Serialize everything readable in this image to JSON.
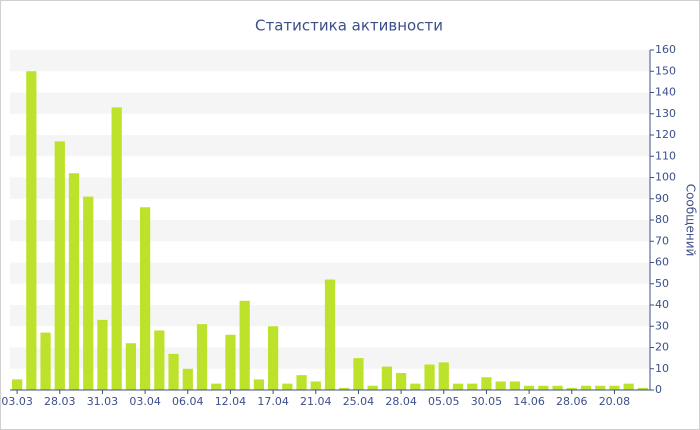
{
  "chart_data": {
    "type": "bar",
    "title": "Статистика активности",
    "y_label": "Сообщений",
    "categories": [
      "03.03",
      null,
      null,
      "28.03",
      null,
      null,
      "31.03",
      null,
      null,
      "03.04",
      null,
      null,
      "06.04",
      null,
      null,
      "12.04",
      null,
      null,
      "17.04",
      null,
      null,
      "21.04",
      null,
      null,
      "25.04",
      null,
      null,
      "28.04",
      null,
      null,
      "05.05",
      null,
      null,
      "30.05",
      null,
      null,
      "14.06",
      null,
      null,
      "28.06",
      null,
      null,
      "20.08",
      null,
      null
    ],
    "values": [
      5,
      150,
      27,
      117,
      102,
      91,
      33,
      133,
      22,
      86,
      28,
      17,
      10,
      31,
      3,
      26,
      42,
      5,
      30,
      3,
      7,
      4,
      52,
      1,
      15,
      2,
      11,
      8,
      3,
      12,
      13,
      3,
      3,
      6,
      4,
      4,
      2,
      2,
      2,
      1,
      2,
      2,
      2,
      3,
      1
    ],
    "color": "#bde22c",
    "ylim": [
      0,
      160
    ],
    "yticks": [
      0,
      10,
      20,
      30,
      40,
      50,
      60,
      70,
      80,
      90,
      100,
      110,
      120,
      130,
      140,
      150,
      160
    ],
    "y_axis_side": "right",
    "grid": true
  }
}
